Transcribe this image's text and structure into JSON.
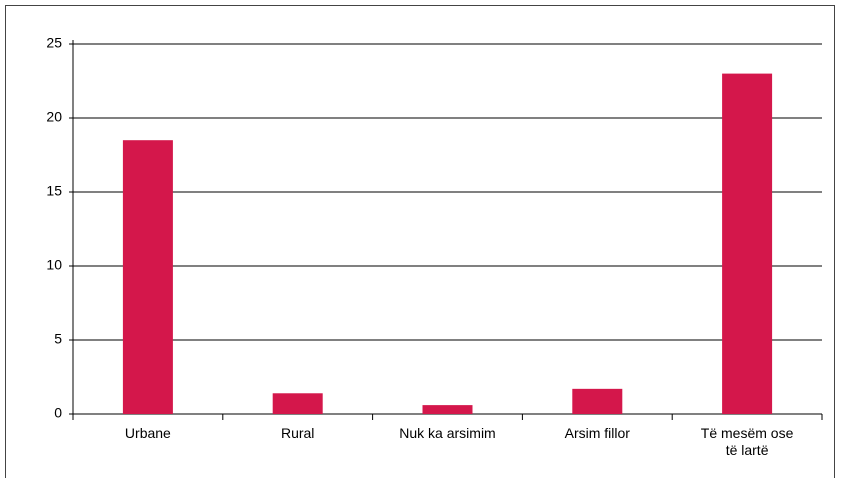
{
  "chart_data": {
    "type": "bar",
    "categories": [
      "Urbane",
      "Rural",
      "Nuk ka arsimim",
      "Arsim fillor",
      "Të mesëm ose\ntë lartë"
    ],
    "values": [
      18.5,
      1.4,
      0.6,
      1.7,
      23.0
    ],
    "color": "#d4174b",
    "ylim": [
      0,
      25
    ],
    "yticks": [
      0,
      5,
      10,
      15,
      20,
      25
    ],
    "grid": true
  }
}
